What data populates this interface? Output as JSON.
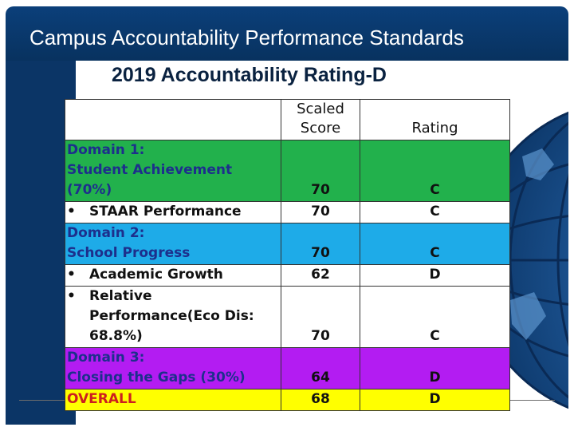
{
  "slide": {
    "title": "Campus Accountability Performance Standards",
    "subtitle": "2019 Accountability Rating-D"
  },
  "table": {
    "headers": {
      "label": "",
      "score": [
        "Scaled",
        "Score"
      ],
      "rating": "Rating"
    },
    "rows": [
      {
        "kind": "domain",
        "color": "#22b14c",
        "label_lines": [
          "Domain 1:",
          "Student Achievement (70%)"
        ],
        "score": "70",
        "rating": "C"
      },
      {
        "kind": "bullet",
        "color": "#ffffff",
        "bullet": "•",
        "label_lines": [
          "STAAR Performance"
        ],
        "score": "70",
        "rating": "C"
      },
      {
        "kind": "domain",
        "color": "#1eabe8",
        "label_lines": [
          "Domain 2:",
          "School Progress"
        ],
        "score": "70",
        "rating": "C"
      },
      {
        "kind": "bullet",
        "color": "#ffffff",
        "bullet": "•",
        "label_lines": [
          "Academic Growth"
        ],
        "score": "62",
        "rating": "D"
      },
      {
        "kind": "bullet",
        "color": "#ffffff",
        "bullet": "•",
        "label_lines": [
          "Relative",
          "Performance(Eco Dis:",
          "68.8%)"
        ],
        "score": "70",
        "rating": "C"
      },
      {
        "kind": "domain",
        "color": "#b31cf2",
        "label_lines": [
          "Domain 3:",
          "Closing the Gaps (30%)"
        ],
        "score": "64",
        "rating": "D"
      },
      {
        "kind": "overall",
        "color": "#ffff00",
        "label_lines": [
          "OVERALL"
        ],
        "score": "68",
        "rating": "D"
      }
    ]
  },
  "colors": {
    "title_bar": "#0b3f7a",
    "left_band": "#0b3566",
    "domain_label_text": "#1d2f8c",
    "overall_label_text": "#cc1f1f"
  },
  "icons": {
    "globe": "globe-decoration"
  }
}
